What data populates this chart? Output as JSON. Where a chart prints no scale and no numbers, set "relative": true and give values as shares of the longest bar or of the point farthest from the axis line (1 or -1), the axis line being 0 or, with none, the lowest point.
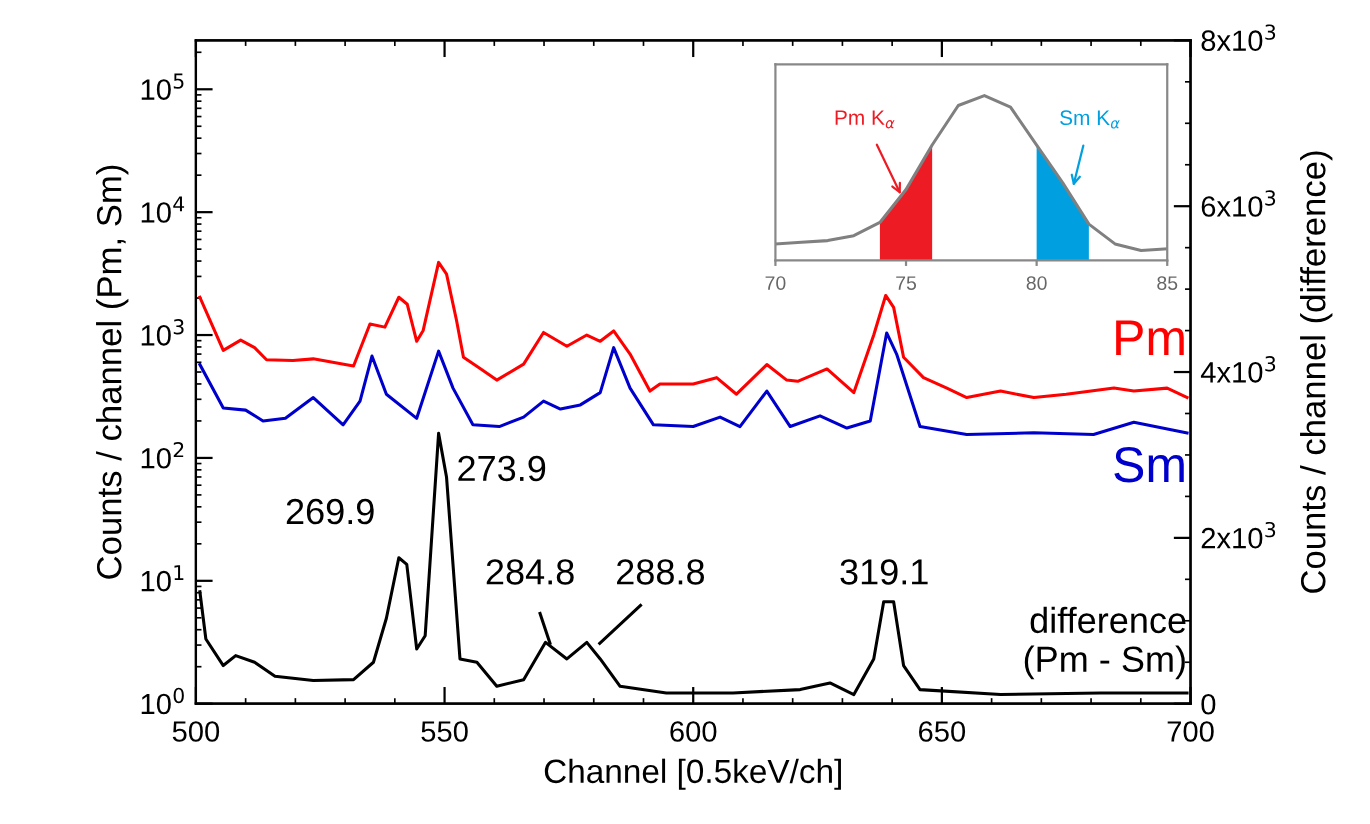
{
  "chart_data": [
    {
      "type": "line",
      "xlabel": "Channel [0.5keV/ch]",
      "ylabel": "Counts / channel (Pm, Sm)",
      "y2label": "Counts / channel (difference)",
      "log": "y",
      "grid": false,
      "xlim": [
        500,
        700
      ],
      "xticks": [
        500,
        550,
        600,
        650,
        700
      ],
      "ylim": [
        1,
        250000
      ],
      "yticks": [
        {
          "value": 1,
          "label": "10$^{0}$"
        },
        {
          "value": 10,
          "label": "10$^{1}$"
        },
        {
          "value": 100,
          "label": "10$^{2}$"
        },
        {
          "value": 1000,
          "label": "10$^{3}$"
        },
        {
          "value": 10000,
          "label": "10$^{4}$"
        },
        {
          "value": 100000,
          "label": "10$^{5}$"
        }
      ],
      "y2lim": [
        0,
        8000
      ],
      "y2ticks": [
        0,
        {
          "value": 2000,
          "label": "2x10$^{3}$"
        },
        {
          "value": 4000,
          "label": "4x10$^{3}$"
        },
        {
          "value": 6000,
          "label": "6x10$^{3}$"
        },
        {
          "value": 8000,
          "label": "8x10$^{3}$"
        }
      ],
      "series": [
        {
          "name": "Pm",
          "color": "#ff0000",
          "x": [
            500.8,
            505.5,
            509,
            511.8,
            514.2,
            519.5,
            523.6,
            530,
            531.7,
            535,
            538,
            540.8,
            542.5,
            544.4,
            545.7,
            548.8,
            550.4,
            552.4,
            553.8,
            557,
            560.5,
            565.9,
            569.9,
            574.6,
            578.6,
            581.3,
            584,
            587.3,
            591.3,
            593.3,
            600,
            604.7,
            608.7,
            614.8,
            618.8,
            621,
            626.9,
            632.3,
            636.3,
            638.7,
            640.3,
            642.3,
            646.3,
            651,
            655,
            661.8,
            668.5,
            675,
            684.6,
            688.6,
            695.3,
            699.3
          ],
          "values": [
            2030,
            750,
            910,
            790,
            630,
            620,
            640,
            575,
            560,
            1230,
            1160,
            2030,
            1780,
            890,
            1090,
            3900,
            3130,
            1320,
            660,
            540,
            430,
            580,
            1050,
            810,
            1000,
            890,
            1080,
            700,
            350,
            400,
            400,
            450,
            330,
            575,
            430,
            420,
            530,
            340,
            1000,
            2100,
            1680,
            660,
            450,
            370,
            310,
            350,
            310,
            330,
            370,
            350,
            370,
            310
          ]
        },
        {
          "name": "Sm",
          "color": "#0000cc",
          "x": [
            500.8,
            505.5,
            510,
            513.5,
            518,
            523.6,
            529.6,
            533,
            535.4,
            538.3,
            544.4,
            548.8,
            551.7,
            555.7,
            561,
            565.9,
            569.9,
            573.3,
            577.3,
            581.3,
            584,
            587.3,
            592,
            600,
            605.4,
            609.4,
            614.8,
            619.5,
            625.5,
            630.9,
            635.6,
            638.9,
            640.9,
            645.6,
            655,
            668.5,
            680.5,
            688.6,
            699.3
          ],
          "values": [
            575,
            255,
            245,
            200,
            210,
            310,
            186,
            290,
            675,
            330,
            210,
            740,
            370,
            186,
            180,
            215,
            290,
            250,
            270,
            340,
            790,
            370,
            186,
            180,
            215,
            180,
            350,
            180,
            220,
            175,
            200,
            1040,
            700,
            180,
            155,
            160,
            155,
            195,
            160
          ]
        },
        {
          "name": "difference\n(Pm - Sm)",
          "color": "#000000",
          "axis": "y2",
          "x": [
            500.8,
            502,
            505.5,
            508,
            511.8,
            515.9,
            523.6,
            531.7,
            535.7,
            538.3,
            540.8,
            542.4,
            544.4,
            546.1,
            548.8,
            550.4,
            553.1,
            556.5,
            560.5,
            565.9,
            570.3,
            574.6,
            578.6,
            581.3,
            585.3,
            594.6,
            608,
            621.5,
            627.5,
            632.3,
            636.3,
            638.3,
            640.3,
            642.3,
            645.6,
            661.8,
            681.9,
            699.3
          ],
          "values": [
            1350,
            780,
            460,
            580,
            500,
            330,
            280,
            290,
            500,
            1030,
            1760,
            1680,
            660,
            820,
            3260,
            2730,
            540,
            500,
            210,
            290,
            740,
            540,
            740,
            540,
            210,
            130,
            130,
            170,
            250,
            110,
            540,
            1230,
            1230,
            460,
            170,
            110,
            130,
            130
          ]
        }
      ],
      "annotations": [
        "269.9",
        "273.9",
        "284.8",
        "288.8",
        "319.1"
      ]
    },
    {
      "type": "line",
      "relative": true,
      "grid": false,
      "tick_labels": "x",
      "xlim": [
        70,
        85
      ],
      "xticks": [
        70,
        75,
        80,
        85
      ],
      "series": [
        {
          "color": "#808080",
          "x": [
            70,
            71,
            72,
            73,
            74,
            75,
            76,
            77,
            78,
            79,
            80,
            81,
            82,
            83,
            84,
            85
          ],
          "values": [
            0.1,
            0.11,
            0.12,
            0.15,
            0.23,
            0.43,
            0.7,
            0.94,
            1,
            0.93,
            0.7,
            0.47,
            0.22,
            0.1,
            0.06,
            0.07
          ]
        },
        {
          "type": "area",
          "color": "#ed1c24",
          "x": [
            74,
            75,
            76
          ],
          "values": [
            0.23,
            0.43,
            0.7
          ]
        },
        {
          "type": "area",
          "color": "#00a0e0",
          "x": [
            80,
            81,
            82
          ],
          "values": [
            0.7,
            0.47,
            0.22
          ]
        }
      ],
      "annotations": [
        {
          "text": "Pm K$_{α}$",
          "x": 74.8,
          "y": 0.4
        },
        {
          "text": "Sm K$_{α}$",
          "x": 81.4,
          "y": 0.45
        }
      ]
    }
  ]
}
